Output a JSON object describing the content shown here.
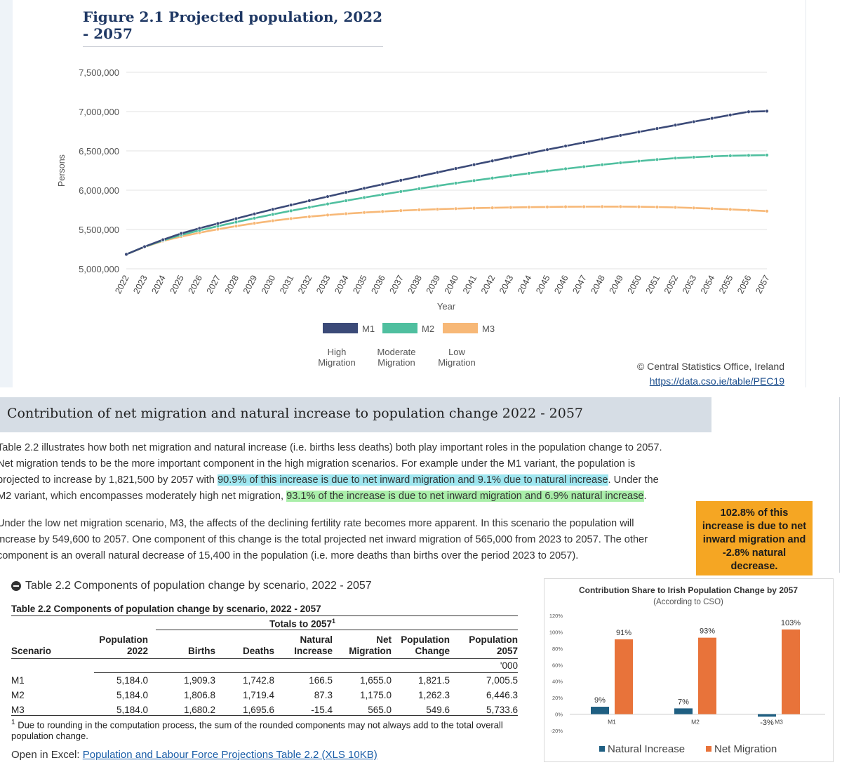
{
  "figure": {
    "title": "Figure 2.1 Projected population, 2022 - 2057",
    "credit": "© Central Statistics Office, Ireland",
    "credit_link": "https://data.cso.ie/table/PEC19"
  },
  "chart_data": [
    {
      "type": "line",
      "title": "Figure 2.1 Projected population, 2022 - 2057",
      "xlabel": "Year",
      "ylabel": "Persons",
      "ylim": [
        5000000,
        7500000
      ],
      "yticks": [
        "5,000,000",
        "5,500,000",
        "6,000,000",
        "6,500,000",
        "7,000,000",
        "7,500,000"
      ],
      "grid": true,
      "legend_position": "bottom",
      "x": [
        2022,
        2023,
        2024,
        2025,
        2026,
        2027,
        2028,
        2029,
        2030,
        2031,
        2032,
        2033,
        2034,
        2035,
        2036,
        2037,
        2038,
        2039,
        2040,
        2041,
        2042,
        2043,
        2044,
        2045,
        2046,
        2047,
        2048,
        2049,
        2050,
        2051,
        2052,
        2053,
        2054,
        2055,
        2056,
        2057
      ],
      "series": [
        {
          "name": "M1",
          "sublabel": "High Migration",
          "color": "#3b4a78",
          "values": [
            5184000,
            5282000,
            5370000,
            5450000,
            5515000,
            5576000,
            5638000,
            5698000,
            5756000,
            5812000,
            5866000,
            5919000,
            5972000,
            6024000,
            6075000,
            6126000,
            6176000,
            6226000,
            6276000,
            6325000,
            6373000,
            6421000,
            6469000,
            6516000,
            6562000,
            6607000,
            6652000,
            6697000,
            6741000,
            6785000,
            6828000,
            6871000,
            6914000,
            6957000,
            6998000,
            7005500
          ]
        },
        {
          "name": "M2",
          "sublabel": "Moderate Migration",
          "color": "#4fbf9f",
          "values": [
            5184000,
            5280000,
            5362000,
            5430000,
            5488000,
            5542000,
            5594000,
            5644000,
            5692000,
            5738000,
            5782000,
            5825000,
            5866000,
            5906000,
            5945000,
            5983000,
            6019000,
            6055000,
            6089000,
            6122000,
            6154000,
            6185000,
            6215000,
            6244000,
            6272000,
            6299000,
            6324000,
            6348000,
            6370000,
            6390000,
            6408000,
            6420000,
            6430000,
            6438000,
            6443000,
            6446300
          ]
        },
        {
          "name": "M3",
          "sublabel": "Low Migration",
          "color": "#f7b877",
          "values": [
            5184000,
            5278000,
            5354000,
            5410000,
            5459000,
            5503000,
            5543000,
            5579000,
            5611000,
            5639000,
            5663000,
            5684000,
            5701000,
            5716000,
            5729000,
            5740000,
            5750000,
            5758000,
            5765000,
            5771000,
            5776000,
            5780000,
            5784000,
            5787000,
            5789000,
            5790000,
            5791000,
            5791000,
            5789000,
            5786000,
            5781000,
            5774000,
            5766000,
            5756000,
            5745000,
            5733600
          ]
        }
      ]
    },
    {
      "type": "bar",
      "title": "Contribution Share to Irish Population Change by 2057",
      "subtitle": "(According to CSO)",
      "categories": [
        "M1",
        "M2",
        "M3"
      ],
      "ylim": [
        -20,
        120
      ],
      "yticks": [
        "-20%",
        "0%",
        "20%",
        "40%",
        "60%",
        "80%",
        "100%",
        "120%"
      ],
      "legend_position": "bottom",
      "series": [
        {
          "name": "Natural Increase",
          "color": "#1f5f82",
          "values": [
            9,
            7,
            -3
          ],
          "labels": [
            "9%",
            "7%",
            "-3%"
          ]
        },
        {
          "name": "Net Migration",
          "color": "#e8733a",
          "values": [
            91,
            93,
            103
          ],
          "labels": [
            "91%",
            "93%",
            "103%"
          ]
        }
      ]
    }
  ],
  "section": {
    "title": "Contribution of net migration and natural increase to population change 2022 - 2057"
  },
  "para1": {
    "line1": "Table 2.2 illustrates how both net migration and natural increase (i.e. births less deaths) both play important roles in the population change to 2057.",
    "line2": "Net migration tends to be the more important component in the high migration scenarios.  For example under the M1 variant, the population is",
    "line3_pre": "projected to increase by 1,821,500 by 2057 with ",
    "line3_hl": "90.9% of this increase is due to net inward migration and 9.1% due to natural increase",
    "line3_post": ". Under the",
    "line4_pre": "M2 variant, which encompasses moderately high net migration, ",
    "line4_hl": "93.1% of the increase is due to net inward migration and 6.9% natural increase",
    "line4_post": "."
  },
  "para2": {
    "line1": "Under the low net migration scenario, M3, the affects of the declining fertility rate becomes more apparent. In this scenario the population will",
    "line2": "increase by 549,600 to 2057. One component of this change is the total projected net inward migration of 565,000 from 2023 to 2057. The other",
    "line3": "component is an overall natural decrease of 15,400 in the population (i.e. more deaths than births over the period 2023 to 2057)."
  },
  "callout": {
    "line1": "102.8% of this",
    "line2": "increase is due to net",
    "line3": "inward migration and",
    "line4": "-2.8% natural",
    "line5": "decrease."
  },
  "table": {
    "toggle_label": "Table 2.2 Components of population change by scenario, 2022 - 2057",
    "caption": "Table 2.2 Components of population change by scenario, 2022 - 2057",
    "group_header": "Totals to 2057",
    "group_sup": "1",
    "headers": {
      "scenario": "Scenario",
      "pop2022_a": "Population",
      "pop2022_b": "2022",
      "births": "Births",
      "deaths": "Deaths",
      "natural_a": "Natural",
      "natural_b": "Increase",
      "net_a": "Net",
      "net_b": "Migration",
      "change_a": "Population",
      "change_b": "Change",
      "pop2057_a": "Population",
      "pop2057_b": "2057"
    },
    "unit": "'000",
    "rows": [
      {
        "scenario": "M1",
        "pop2022": "5,184.0",
        "births": "1,909.3",
        "deaths": "1,742.8",
        "natural": "166.5",
        "net": "1,655.0",
        "change": "1,821.5",
        "pop2057": "7,005.5"
      },
      {
        "scenario": "M2",
        "pop2022": "5,184.0",
        "births": "1,806.8",
        "deaths": "1,719.4",
        "natural": "87.3",
        "net": "1,175.0",
        "change": "1,262.3",
        "pop2057": "6,446.3"
      },
      {
        "scenario": "M3",
        "pop2022": "5,184.0",
        "births": "1,680.2",
        "deaths": "1,695.6",
        "natural": "-15.4",
        "net": "565.0",
        "change": "549.6",
        "pop2057": "5,733.6"
      }
    ],
    "footnote_sup": "1",
    "footnote": "Due to rounding in the computation process, the sum of the rounded components may not always add to the total overall population change.",
    "open_prefix": "Open in Excel: ",
    "open_link": "Population and Labour Force Projections Table 2.2 (XLS 10KB)"
  }
}
